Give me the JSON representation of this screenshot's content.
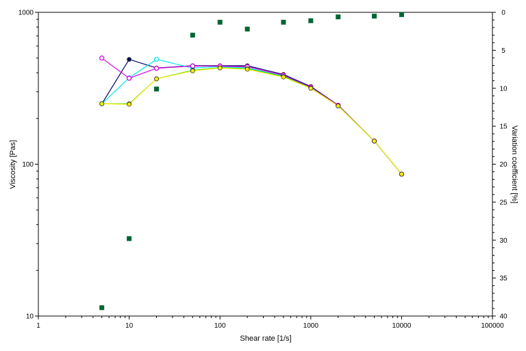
{
  "chart_data": {
    "type": "scatter",
    "xlabel": "Shear rate [1/s]",
    "ylabel": "Viscosity  [Pas]",
    "y2label": "Variation coefficient [%]",
    "xscale": "log",
    "yscale": "log",
    "xlim": [
      1,
      100000
    ],
    "ylim": [
      10,
      1000
    ],
    "y2lim": [
      0,
      40
    ],
    "y2_inverted": true,
    "x_ticks": [
      "1",
      "10",
      "100",
      "1000",
      "10000",
      "100000"
    ],
    "y_ticks": [
      "10",
      "100",
      "1000"
    ],
    "y2_ticks": [
      "0",
      "5",
      "10",
      "15",
      "20",
      "25",
      "30",
      "35",
      "40"
    ],
    "grid": false,
    "series": [
      {
        "color": "#000066",
        "marker": "circle-filled",
        "axis": "left",
        "x": [
          5,
          10,
          20,
          50,
          100,
          200,
          500,
          1000,
          2000,
          5000,
          10000
        ],
        "y": [
          250,
          490,
          430,
          445,
          445,
          445,
          390,
          325,
          245,
          142,
          86
        ]
      },
      {
        "color": "#00e5ee",
        "marker": "circle-open",
        "axis": "left",
        "x": [
          5,
          10,
          20,
          50,
          100,
          200,
          500,
          1000,
          2000,
          5000,
          10000
        ],
        "y": [
          250,
          370,
          490,
          430,
          440,
          430,
          380,
          318,
          242,
          142,
          86
        ]
      },
      {
        "color": "#dd00dd",
        "marker": "circle-open",
        "axis": "left",
        "x": [
          5,
          10,
          20,
          50,
          100,
          200,
          500,
          1000,
          2000,
          5000,
          10000
        ],
        "y": [
          500,
          368,
          428,
          443,
          442,
          438,
          385,
          322,
          244,
          142,
          86
        ]
      },
      {
        "color": "#00cc00",
        "marker": "circle-filled",
        "axis": "left",
        "x": [
          5,
          10,
          20,
          50,
          100,
          200,
          500,
          1000,
          2000,
          5000,
          10000
        ],
        "y": [
          250,
          250,
          365,
          415,
          432,
          425,
          378,
          318,
          242,
          142,
          86
        ]
      },
      {
        "color": "#ffee00",
        "marker": "circle-filled",
        "axis": "left",
        "x": [
          5,
          10,
          20,
          50,
          100,
          200,
          500,
          1000,
          2000,
          5000,
          10000
        ],
        "y": [
          250,
          248,
          365,
          412,
          430,
          422,
          375,
          316,
          242,
          142,
          86
        ]
      },
      {
        "color": "#006633",
        "marker": "square",
        "axis": "right",
        "line": false,
        "x": [
          5,
          10,
          20,
          50,
          100,
          200,
          500,
          1000,
          2000,
          5000,
          10000
        ],
        "y": [
          38.9,
          29.8,
          10.1,
          3.0,
          1.3,
          2.2,
          1.3,
          1.1,
          0.6,
          0.5,
          0.3
        ]
      }
    ]
  }
}
